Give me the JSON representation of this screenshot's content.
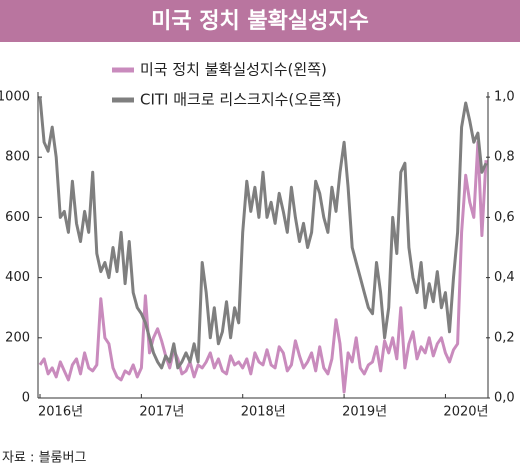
{
  "chart_data": {
    "type": "line",
    "title": "미국 정치 불확실성지수",
    "source": "자료 : 블룸버그",
    "x": [
      2016,
      2016.04,
      2016.08,
      2016.12,
      2016.16,
      2016.2,
      2016.24,
      2016.28,
      2016.32,
      2016.36,
      2016.4,
      2016.44,
      2016.48,
      2016.52,
      2016.56,
      2016.6,
      2016.64,
      2016.68,
      2016.72,
      2016.76,
      2016.8,
      2016.84,
      2016.88,
      2016.92,
      2016.96,
      2017,
      2017.04,
      2017.08,
      2017.12,
      2017.16,
      2017.2,
      2017.24,
      2017.28,
      2017.32,
      2017.36,
      2017.4,
      2017.44,
      2017.48,
      2017.52,
      2017.56,
      2017.6,
      2017.64,
      2017.68,
      2017.72,
      2017.76,
      2017.8,
      2017.84,
      2017.88,
      2017.92,
      2017.96,
      2018,
      2018.04,
      2018.08,
      2018.12,
      2018.16,
      2018.2,
      2018.24,
      2018.28,
      2018.32,
      2018.36,
      2018.4,
      2018.44,
      2018.48,
      2018.52,
      2018.56,
      2018.6,
      2018.64,
      2018.68,
      2018.72,
      2018.76,
      2018.8,
      2018.84,
      2018.88,
      2018.92,
      2018.96,
      2019,
      2019.04,
      2019.08,
      2019.12,
      2019.16,
      2019.2,
      2019.24,
      2019.28,
      2019.32,
      2019.36,
      2019.4,
      2019.44,
      2019.48,
      2019.52,
      2019.56,
      2019.6,
      2019.64,
      2019.68,
      2019.72,
      2019.76,
      2019.8,
      2019.84,
      2019.88,
      2019.92,
      2019.96,
      2020,
      2020.04,
      2020.08,
      2020.12,
      2020.16,
      2020.2,
      2020.24,
      2020.28,
      2020.32,
      2020.36,
      2020.4
    ],
    "series": [
      {
        "name": "미국 정치 불확실성지수(왼쪽)",
        "color": "#c98bbd",
        "values": [
          110,
          130,
          80,
          100,
          70,
          120,
          90,
          60,
          110,
          130,
          80,
          150,
          100,
          90,
          110,
          330,
          200,
          180,
          100,
          70,
          60,
          90,
          80,
          110,
          70,
          100,
          340,
          150,
          200,
          230,
          190,
          140,
          100,
          160,
          130,
          80,
          90,
          120,
          70,
          110,
          100,
          120,
          150,
          100,
          130,
          90,
          80,
          140,
          110,
          120,
          100,
          130,
          80,
          150,
          120,
          110,
          160,
          110,
          100,
          170,
          150,
          90,
          110,
          190,
          140,
          100,
          120,
          150,
          90,
          170,
          100,
          80,
          130,
          260,
          180,
          20,
          150,
          120,
          200,
          100,
          80,
          110,
          120,
          170,
          90,
          190,
          150,
          200,
          130,
          300,
          100,
          180,
          220,
          130,
          170,
          150,
          200,
          140,
          180,
          200,
          150,
          120,
          160,
          180,
          550,
          740,
          650,
          600,
          850,
          540,
          790
        ]
      },
      {
        "name": "CITI 매크로 리스크지수(오른쪽)",
        "color": "#7f7f7f",
        "axis": "y2",
        "values": [
          1.0,
          0.85,
          0.82,
          0.9,
          0.8,
          0.6,
          0.62,
          0.55,
          0.72,
          0.58,
          0.52,
          0.62,
          0.55,
          0.75,
          0.48,
          0.42,
          0.45,
          0.4,
          0.5,
          0.42,
          0.55,
          0.38,
          0.52,
          0.35,
          0.3,
          0.28,
          0.25,
          0.2,
          0.15,
          0.12,
          0.1,
          0.14,
          0.12,
          0.18,
          0.1,
          0.12,
          0.15,
          0.12,
          0.18,
          0.12,
          0.45,
          0.35,
          0.2,
          0.3,
          0.18,
          0.22,
          0.32,
          0.2,
          0.3,
          0.25,
          0.55,
          0.72,
          0.62,
          0.7,
          0.6,
          0.75,
          0.6,
          0.65,
          0.58,
          0.68,
          0.62,
          0.55,
          0.7,
          0.6,
          0.52,
          0.58,
          0.5,
          0.55,
          0.72,
          0.68,
          0.6,
          0.55,
          0.7,
          0.62,
          0.75,
          0.85,
          0.7,
          0.5,
          0.45,
          0.4,
          0.35,
          0.3,
          0.28,
          0.45,
          0.35,
          0.2,
          0.3,
          0.6,
          0.48,
          0.75,
          0.78,
          0.5,
          0.4,
          0.35,
          0.45,
          0.3,
          0.38,
          0.32,
          0.42,
          0.3,
          0.35,
          0.22,
          0.4,
          0.55,
          0.9,
          0.98,
          0.92,
          0.85,
          0.88,
          0.75,
          0.78
        ]
      }
    ],
    "xlim": [
      2016,
      2020.42
    ],
    "xticks": [
      {
        "value": 2016,
        "label": "2016년"
      },
      {
        "value": 2017,
        "label": "2017년"
      },
      {
        "value": 2018,
        "label": "2018년"
      },
      {
        "value": 2019,
        "label": "2019년"
      },
      {
        "value": 2020,
        "label": "2020년"
      }
    ],
    "ylim": [
      0,
      1000
    ],
    "yticks": [
      0,
      200,
      400,
      600,
      800,
      1000
    ],
    "y2lim": [
      0,
      1.0
    ],
    "y2ticks": [
      {
        "value": 0,
        "label": "0,0"
      },
      {
        "value": 0.2,
        "label": "0,2"
      },
      {
        "value": 0.4,
        "label": "0,4"
      },
      {
        "value": 0.6,
        "label": "0,6"
      },
      {
        "value": 0.8,
        "label": "0,8"
      },
      {
        "value": 1.0,
        "label": "1,0"
      }
    ]
  }
}
